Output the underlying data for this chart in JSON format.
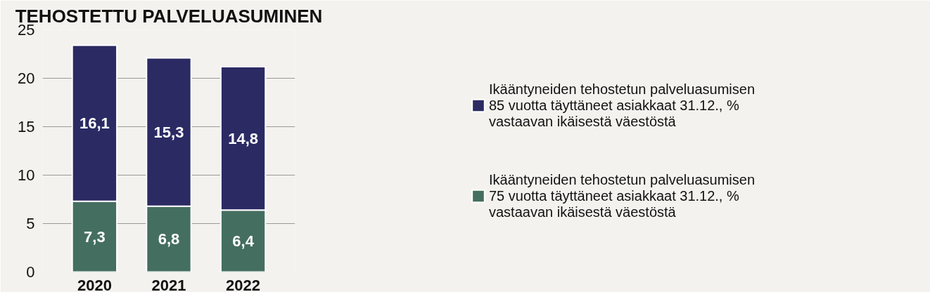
{
  "chart_data": {
    "type": "bar",
    "title": "TEHOSTETTU PALVELUASUMINEN",
    "categories": [
      "2020",
      "2021",
      "2022"
    ],
    "stacked": true,
    "series": [
      {
        "name": "Ikääntyneiden tehostetun palveluasumisen 75 vuotta täyttäneet asiakkaat 31.12., % vastaavan ikäisestä väestöstä",
        "color": "#446e60",
        "values": [
          7.3,
          6.8,
          6.4
        ],
        "value_labels": [
          "7,3",
          "6,8",
          "6,4"
        ]
      },
      {
        "name": "Ikääntyneiden tehostetun palveluasumisen 85 vuotta täyttäneet asiakkaat 31.12., % vastaavan ikäisestä väestöstä",
        "color": "#2b2a63",
        "values": [
          16.1,
          15.3,
          14.8
        ],
        "value_labels": [
          "16,1",
          "15,3",
          "14,8"
        ]
      }
    ],
    "ylim": [
      0,
      25
    ],
    "yticks": [
      0,
      5,
      10,
      15,
      20,
      25
    ],
    "grid": "y",
    "legend": "right"
  }
}
